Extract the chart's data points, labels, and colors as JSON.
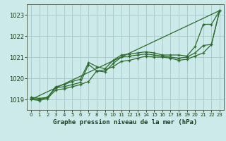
{
  "title": "Graphe pression niveau de la mer (hPa)",
  "bg_color": "#cceaea",
  "grid_color": "#aacccc",
  "line_color": "#2d6a2d",
  "xlim": [
    -0.5,
    23.5
  ],
  "ylim": [
    1018.5,
    1023.5
  ],
  "yticks": [
    1019,
    1020,
    1021,
    1022,
    1023
  ],
  "xticks": [
    0,
    1,
    2,
    3,
    4,
    5,
    6,
    7,
    8,
    9,
    10,
    11,
    12,
    13,
    14,
    15,
    16,
    17,
    18,
    19,
    20,
    21,
    22,
    23
  ],
  "series": [
    {
      "x": [
        0,
        1,
        2,
        3,
        4,
        5,
        6,
        7,
        8,
        9,
        10,
        11,
        12,
        13,
        14,
        15,
        16,
        17,
        18,
        19,
        20,
        21,
        22,
        23
      ],
      "y": [
        1019.1,
        1019.05,
        1019.1,
        1019.6,
        1019.7,
        1019.85,
        1019.95,
        1020.75,
        1020.55,
        1020.45,
        1020.85,
        1021.1,
        1021.15,
        1021.2,
        1021.25,
        1021.2,
        1021.1,
        1021.1,
        1021.1,
        1021.05,
        1021.5,
        1022.55,
        1022.55,
        1023.2
      ]
    },
    {
      "x": [
        0,
        1,
        2,
        3,
        4,
        5,
        6,
        7,
        8,
        9,
        10,
        11,
        12,
        13,
        14,
        15,
        16,
        17,
        18,
        19,
        20,
        21,
        22,
        23
      ],
      "y": [
        1019.05,
        1019.0,
        1019.1,
        1019.55,
        1019.6,
        1019.7,
        1019.8,
        1020.65,
        1020.35,
        1020.3,
        1020.7,
        1021.0,
        1021.05,
        1021.1,
        1021.15,
        1021.1,
        1021.05,
        1021.0,
        1020.95,
        1021.0,
        1021.2,
        1021.55,
        1021.6,
        1023.2
      ]
    },
    {
      "x": [
        0,
        1,
        2,
        3,
        4,
        5,
        6,
        7,
        8,
        9,
        10,
        11,
        12,
        13,
        14,
        15,
        16,
        17,
        18,
        19,
        20,
        21,
        22,
        23
      ],
      "y": [
        1019.0,
        1018.95,
        1019.05,
        1019.45,
        1019.5,
        1019.6,
        1019.7,
        1019.85,
        1020.35,
        1020.4,
        1020.55,
        1020.8,
        1020.85,
        1020.95,
        1021.05,
        1021.0,
        1021.0,
        1020.95,
        1020.85,
        1020.9,
        1021.05,
        1021.2,
        1021.6,
        1023.2
      ]
    },
    {
      "x": [
        0,
        23
      ],
      "y": [
        1019.0,
        1023.2
      ]
    }
  ]
}
